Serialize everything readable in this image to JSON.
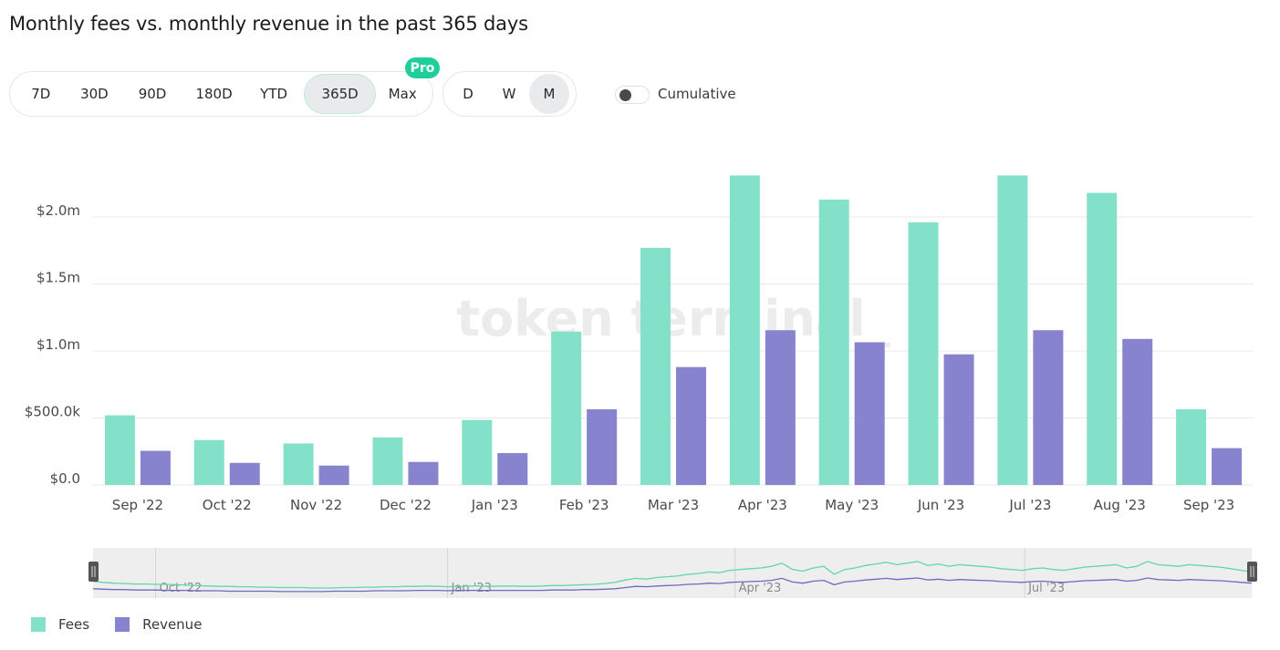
{
  "title": "Monthly fees vs. monthly revenue in the past 365 days",
  "range_buttons": [
    {
      "label": "7D",
      "active": false
    },
    {
      "label": "30D",
      "active": false
    },
    {
      "label": "90D",
      "active": false
    },
    {
      "label": "180D",
      "active": false
    },
    {
      "label": "YTD",
      "active": false
    },
    {
      "label": "365D",
      "active": true
    },
    {
      "label": "Max",
      "active": false
    }
  ],
  "pro_badge": "Pro",
  "granularity_buttons": [
    {
      "label": "D",
      "active": false
    },
    {
      "label": "W",
      "active": false
    },
    {
      "label": "M",
      "active": true
    }
  ],
  "cumulative": {
    "label": "Cumulative",
    "enabled": false
  },
  "watermark": "token terminal_",
  "colors": {
    "fees": "#84e1c9",
    "revenue": "#8783cf",
    "grid": "#e8e8e8",
    "axis_text": "#4a4a4a"
  },
  "chart_data": {
    "type": "bar",
    "categories": [
      "Sep '22",
      "Oct '22",
      "Nov '22",
      "Dec '22",
      "Jan '23",
      "Feb '23",
      "Mar '23",
      "Apr '23",
      "May '23",
      "Jun '23",
      "Jul '23",
      "Aug '23",
      "Sep '23"
    ],
    "series": [
      {
        "name": "Fees",
        "values": [
          520000,
          335000,
          310000,
          355000,
          485000,
          1145000,
          1770000,
          2310000,
          2130000,
          1960000,
          2310000,
          2180000,
          565000
        ]
      },
      {
        "name": "Revenue",
        "values": [
          255000,
          165000,
          145000,
          172000,
          238000,
          565000,
          880000,
          1155000,
          1065000,
          975000,
          1155000,
          1090000,
          275000
        ]
      }
    ],
    "y_ticks": [
      "$0.0",
      "$500.0k",
      "$1.0m",
      "$1.5m",
      "$2.0m"
    ],
    "y_tick_values": [
      0,
      500000,
      1000000,
      1500000,
      2000000
    ],
    "ylim": [
      0,
      2300000
    ],
    "grid": true,
    "legend_position": "bottom-left"
  },
  "brush": {
    "labels": [
      "Oct '22",
      "Jan '23",
      "Apr '23",
      "Jul '23"
    ],
    "fees_trend": [
      0.32,
      0.3,
      0.28,
      0.27,
      0.26,
      0.26,
      0.25,
      0.25,
      0.24,
      0.23,
      0.22,
      0.21,
      0.2,
      0.2,
      0.19,
      0.19,
      0.18,
      0.18,
      0.17,
      0.17,
      0.17,
      0.16,
      0.16,
      0.16,
      0.17,
      0.17,
      0.18,
      0.18,
      0.19,
      0.19,
      0.2,
      0.2,
      0.21,
      0.2,
      0.19,
      0.2,
      0.21,
      0.21,
      0.2,
      0.21,
      0.21,
      0.2,
      0.2,
      0.21,
      0.22,
      0.22,
      0.23,
      0.24,
      0.25,
      0.27,
      0.3,
      0.36,
      0.4,
      0.38,
      0.42,
      0.44,
      0.46,
      0.5,
      0.52,
      0.56,
      0.54,
      0.6,
      0.62,
      0.64,
      0.66,
      0.7,
      0.78,
      0.62,
      0.58,
      0.66,
      0.7,
      0.5,
      0.62,
      0.66,
      0.72,
      0.76,
      0.8,
      0.74,
      0.78,
      0.82,
      0.72,
      0.76,
      0.7,
      0.74,
      0.72,
      0.7,
      0.68,
      0.64,
      0.62,
      0.6,
      0.64,
      0.66,
      0.62,
      0.6,
      0.64,
      0.68,
      0.7,
      0.72,
      0.74,
      0.66,
      0.7,
      0.82,
      0.74,
      0.72,
      0.7,
      0.74,
      0.72,
      0.7,
      0.68,
      0.64,
      0.6,
      0.56
    ],
    "revenue_trend": [
      0.14,
      0.13,
      0.12,
      0.12,
      0.11,
      0.11,
      0.11,
      0.1,
      0.1,
      0.1,
      0.09,
      0.09,
      0.09,
      0.08,
      0.08,
      0.08,
      0.08,
      0.08,
      0.07,
      0.07,
      0.07,
      0.07,
      0.07,
      0.08,
      0.08,
      0.08,
      0.08,
      0.09,
      0.09,
      0.09,
      0.09,
      0.1,
      0.1,
      0.1,
      0.09,
      0.1,
      0.1,
      0.1,
      0.1,
      0.1,
      0.1,
      0.1,
      0.1,
      0.1,
      0.11,
      0.11,
      0.11,
      0.12,
      0.12,
      0.13,
      0.14,
      0.17,
      0.2,
      0.19,
      0.21,
      0.22,
      0.23,
      0.25,
      0.26,
      0.28,
      0.27,
      0.3,
      0.31,
      0.32,
      0.33,
      0.35,
      0.4,
      0.31,
      0.28,
      0.33,
      0.35,
      0.24,
      0.31,
      0.33,
      0.36,
      0.38,
      0.4,
      0.37,
      0.39,
      0.41,
      0.36,
      0.38,
      0.35,
      0.37,
      0.36,
      0.35,
      0.34,
      0.32,
      0.31,
      0.3,
      0.32,
      0.33,
      0.31,
      0.3,
      0.32,
      0.34,
      0.35,
      0.36,
      0.37,
      0.33,
      0.35,
      0.41,
      0.37,
      0.36,
      0.35,
      0.37,
      0.36,
      0.35,
      0.34,
      0.32,
      0.3,
      0.28
    ]
  }
}
